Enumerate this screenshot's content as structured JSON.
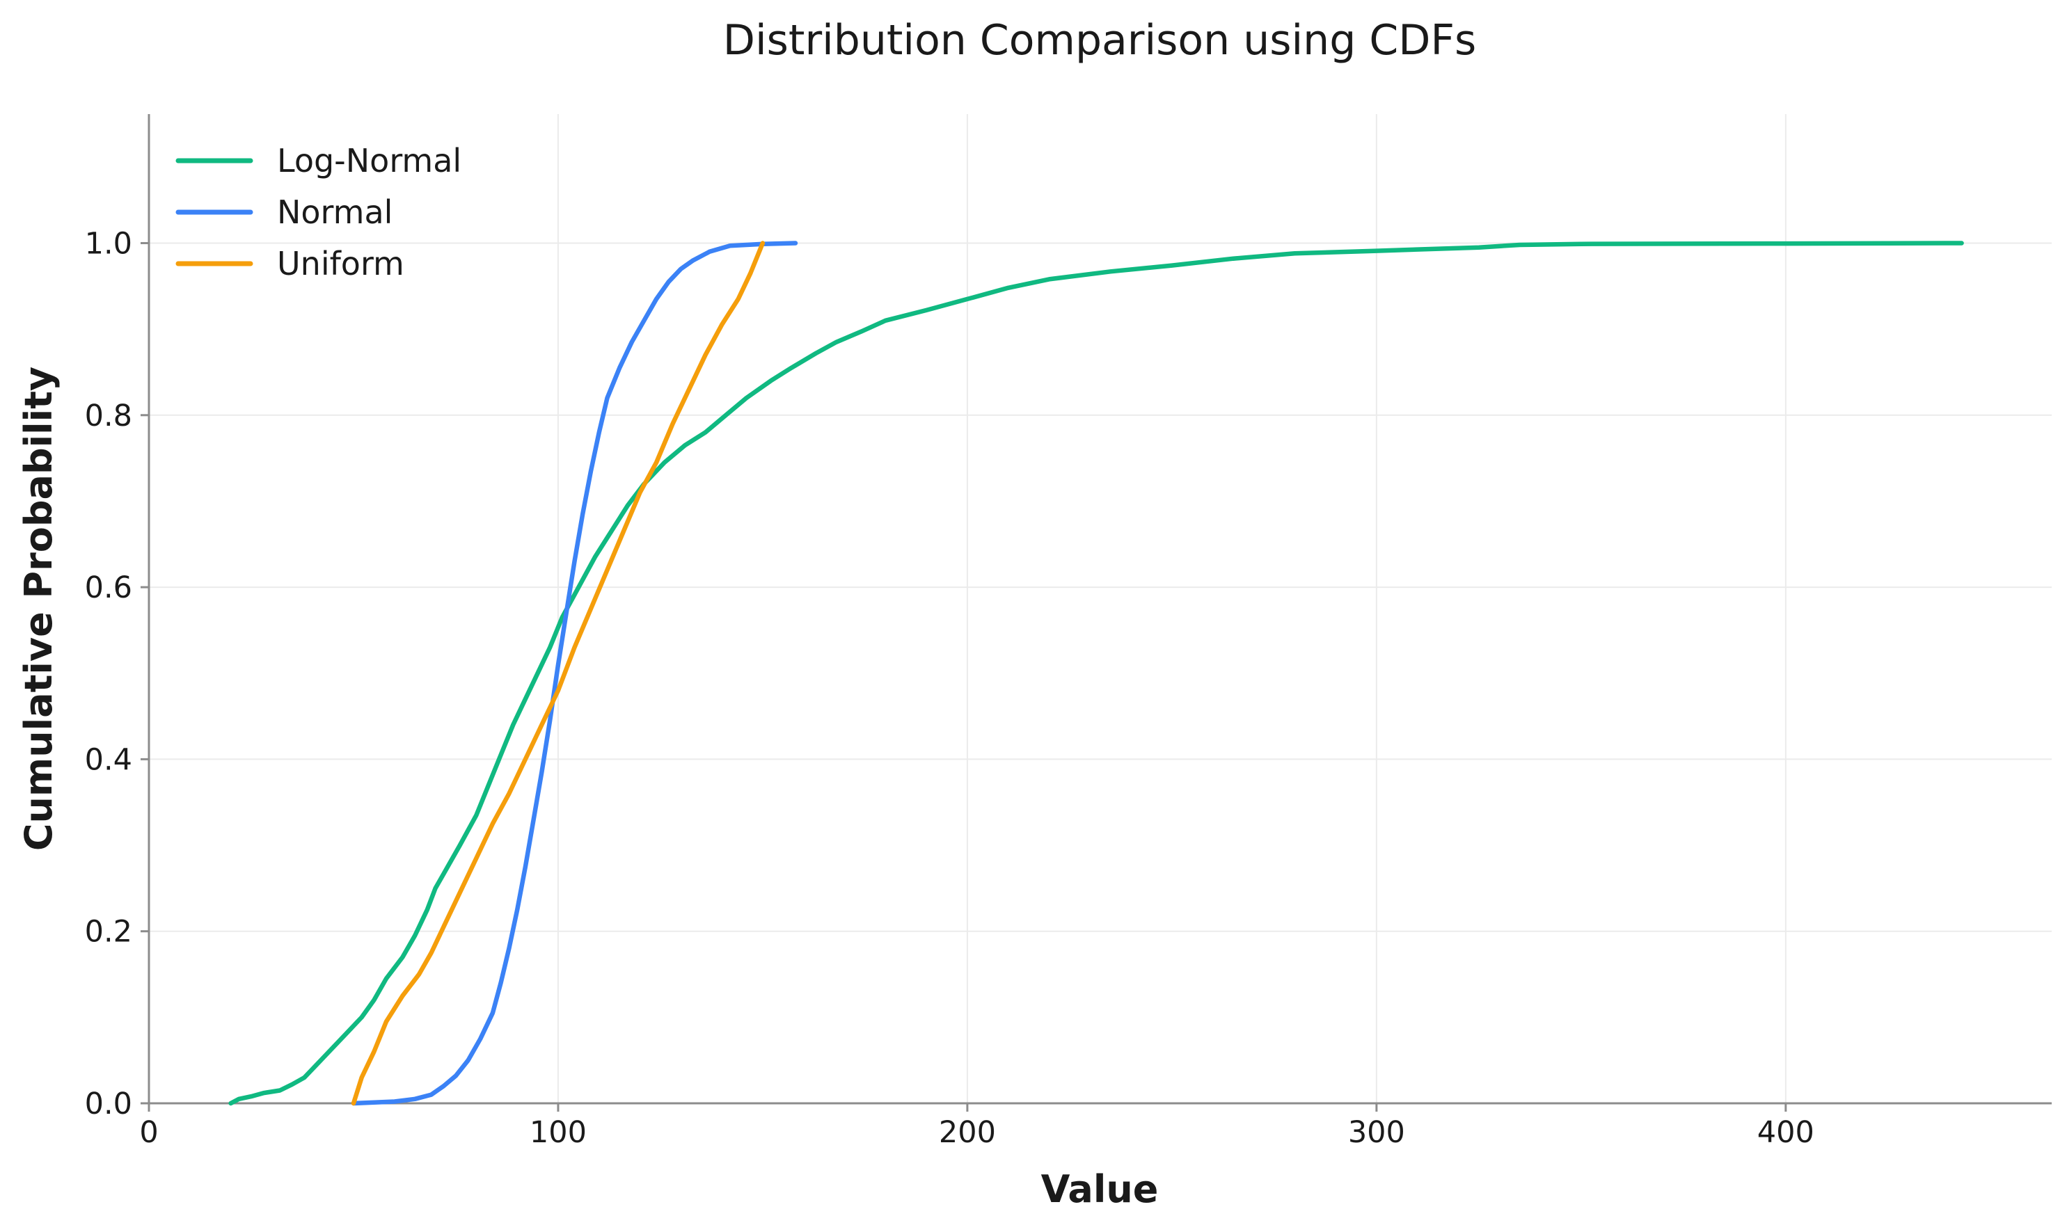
{
  "chart_data": {
    "type": "line",
    "title": "Distribution Comparison using CDFs",
    "xlabel": "Value",
    "ylabel": "Cumulative Probability",
    "xlim": [
      0,
      465
    ],
    "ylim": [
      0,
      1.15
    ],
    "xticks": [
      0,
      100,
      200,
      300,
      400
    ],
    "yticks": [
      0.0,
      0.2,
      0.4,
      0.6,
      0.8,
      1.0
    ],
    "xtick_labels": [
      "0",
      "100",
      "200",
      "300",
      "400"
    ],
    "ytick_labels": [
      "0.0",
      "0.2",
      "0.4",
      "0.6",
      "0.8",
      "1.0"
    ],
    "grid": true,
    "legend_position": "top-left",
    "series": [
      {
        "name": "Log-Normal",
        "color": "#10b981",
        "points": [
          [
            20,
            0.0
          ],
          [
            22,
            0.005
          ],
          [
            25,
            0.008
          ],
          [
            28,
            0.012
          ],
          [
            32,
            0.015
          ],
          [
            35,
            0.022
          ],
          [
            38,
            0.03
          ],
          [
            42,
            0.05
          ],
          [
            45,
            0.065
          ],
          [
            48,
            0.08
          ],
          [
            52,
            0.1
          ],
          [
            55,
            0.12
          ],
          [
            58,
            0.145
          ],
          [
            62,
            0.17
          ],
          [
            65,
            0.195
          ],
          [
            68,
            0.225
          ],
          [
            70,
            0.25
          ],
          [
            73,
            0.275
          ],
          [
            76,
            0.3
          ],
          [
            80,
            0.335
          ],
          [
            83,
            0.37
          ],
          [
            86,
            0.405
          ],
          [
            89,
            0.44
          ],
          [
            92,
            0.47
          ],
          [
            95,
            0.5
          ],
          [
            98,
            0.53
          ],
          [
            101,
            0.565
          ],
          [
            105,
            0.6
          ],
          [
            109,
            0.635
          ],
          [
            113,
            0.665
          ],
          [
            117,
            0.695
          ],
          [
            121,
            0.72
          ],
          [
            126,
            0.745
          ],
          [
            131,
            0.765
          ],
          [
            136,
            0.78
          ],
          [
            141,
            0.8
          ],
          [
            146,
            0.82
          ],
          [
            152,
            0.84
          ],
          [
            157,
            0.855
          ],
          [
            163,
            0.872
          ],
          [
            168,
            0.885
          ],
          [
            174,
            0.897
          ],
          [
            180,
            0.91
          ],
          [
            190,
            0.922
          ],
          [
            200,
            0.935
          ],
          [
            210,
            0.948
          ],
          [
            220,
            0.958
          ],
          [
            235,
            0.967
          ],
          [
            250,
            0.974
          ],
          [
            265,
            0.982
          ],
          [
            280,
            0.988
          ],
          [
            300,
            0.991
          ],
          [
            325,
            0.995
          ],
          [
            335,
            0.998
          ],
          [
            350,
            0.999
          ],
          [
            400,
            0.9995
          ],
          [
            443,
            1.0
          ]
        ]
      },
      {
        "name": "Normal",
        "color": "#3b82f6",
        "points": [
          [
            50,
            0.0
          ],
          [
            60,
            0.002
          ],
          [
            65,
            0.005
          ],
          [
            69,
            0.01
          ],
          [
            72,
            0.02
          ],
          [
            75,
            0.032
          ],
          [
            78,
            0.05
          ],
          [
            81,
            0.075
          ],
          [
            84,
            0.105
          ],
          [
            86,
            0.14
          ],
          [
            88,
            0.18
          ],
          [
            90,
            0.225
          ],
          [
            92,
            0.275
          ],
          [
            94,
            0.33
          ],
          [
            96,
            0.385
          ],
          [
            98,
            0.445
          ],
          [
            100,
            0.51
          ],
          [
            102,
            0.57
          ],
          [
            104,
            0.63
          ],
          [
            106,
            0.685
          ],
          [
            108,
            0.735
          ],
          [
            110,
            0.78
          ],
          [
            112,
            0.82
          ],
          [
            115,
            0.855
          ],
          [
            118,
            0.885
          ],
          [
            121,
            0.91
          ],
          [
            124,
            0.935
          ],
          [
            127,
            0.955
          ],
          [
            130,
            0.97
          ],
          [
            133,
            0.98
          ],
          [
            137,
            0.99
          ],
          [
            142,
            0.997
          ],
          [
            150,
            0.999
          ],
          [
            158,
            1.0
          ]
        ]
      },
      {
        "name": "Uniform",
        "color": "#f59e0b",
        "points": [
          [
            50,
            0.0
          ],
          [
            52,
            0.03
          ],
          [
            55,
            0.06
          ],
          [
            58,
            0.095
          ],
          [
            62,
            0.125
          ],
          [
            66,
            0.15
          ],
          [
            69,
            0.175
          ],
          [
            72,
            0.205
          ],
          [
            76,
            0.245
          ],
          [
            80,
            0.285
          ],
          [
            84,
            0.325
          ],
          [
            88,
            0.36
          ],
          [
            92,
            0.4
          ],
          [
            96,
            0.44
          ],
          [
            100,
            0.48
          ],
          [
            104,
            0.53
          ],
          [
            108,
            0.575
          ],
          [
            112,
            0.62
          ],
          [
            116,
            0.665
          ],
          [
            120,
            0.71
          ],
          [
            124,
            0.745
          ],
          [
            128,
            0.79
          ],
          [
            132,
            0.83
          ],
          [
            136,
            0.87
          ],
          [
            140,
            0.905
          ],
          [
            144,
            0.935
          ],
          [
            147,
            0.965
          ],
          [
            150,
            1.0
          ]
        ]
      }
    ]
  }
}
